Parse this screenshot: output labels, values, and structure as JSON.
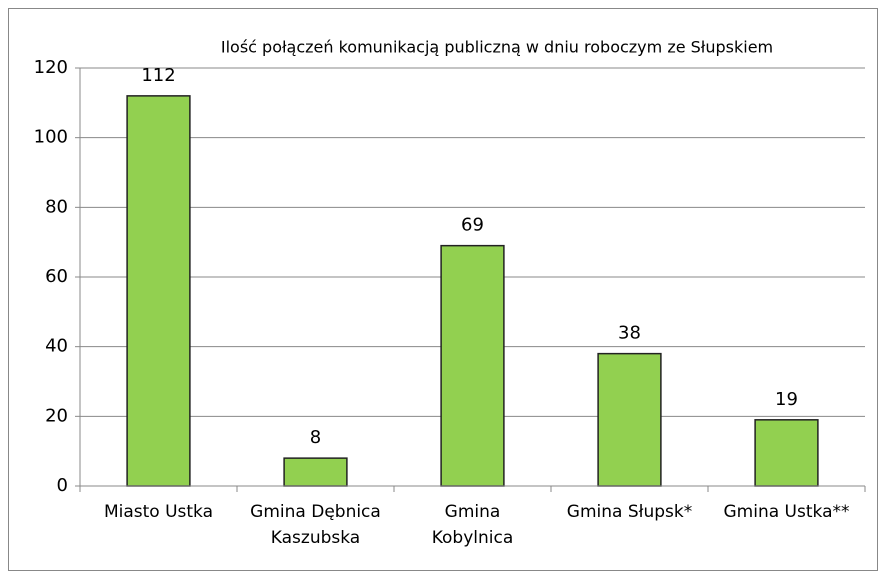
{
  "chart_data": {
    "type": "bar",
    "title": "Ilość połączeń komunikacją publiczną w dniu roboczym ze Słupskiem",
    "categories": [
      "Miasto Ustka",
      "Gmina Dębnica\nKaszubska",
      "Gmina\nKobylnica",
      "Gmina Słupsk*",
      "Gmina Ustka**"
    ],
    "values": [
      112,
      8,
      69,
      38,
      19
    ],
    "color": "#92d050",
    "ylim": [
      0,
      120
    ],
    "yticks": [
      0,
      20,
      40,
      60,
      80,
      100,
      120
    ],
    "grid": true
  }
}
